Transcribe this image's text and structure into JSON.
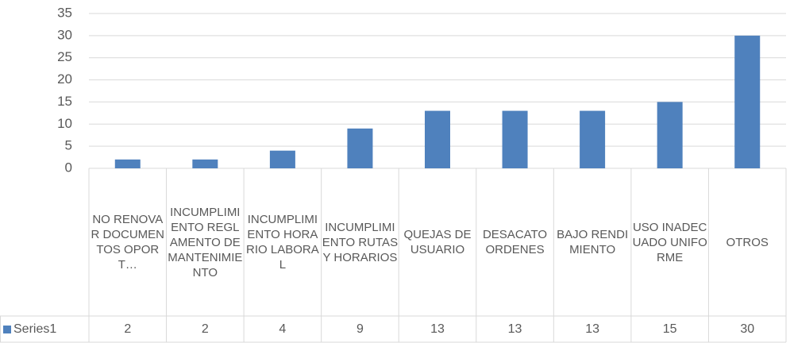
{
  "chart_data": {
    "type": "bar",
    "categories": [
      "NO RENOVAR DOCUMENTOS OPORT…",
      "INCUMPLIMIENTO REGLAMENTO DE MANTENIMIENTO",
      "INCUMPLIMIENTO HORARIO LABORAL",
      "INCUMPLIMIENTO RUTAS Y HORARIOS",
      "QUEJAS DE USUARIO",
      "DESACATO ORDENES",
      "BAJO RENDIMIENTO",
      "USO INADECUADO UNIFORME",
      "OTROS"
    ],
    "series": [
      {
        "name": "Series1",
        "color": "#4f81bd",
        "values": [
          2,
          2,
          4,
          9,
          13,
          13,
          13,
          15,
          30
        ]
      }
    ],
    "ylim": [
      0,
      35
    ],
    "yticks": [
      0,
      5,
      10,
      15,
      20,
      25,
      30,
      35
    ],
    "grid": true
  }
}
